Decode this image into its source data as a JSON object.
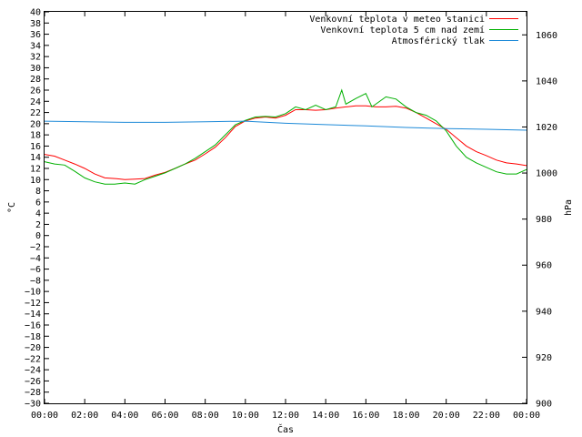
{
  "chart_data": {
    "type": "line",
    "xlabel": "Čas",
    "ylabel": "°C",
    "y2label": "hPa",
    "x_ticks": [
      "00:00",
      "02:00",
      "04:00",
      "06:00",
      "08:00",
      "10:00",
      "12:00",
      "14:00",
      "16:00",
      "18:00",
      "20:00",
      "22:00",
      "00:00"
    ],
    "xlim_hours": [
      0,
      24
    ],
    "ylim": [
      -30,
      40
    ],
    "y_ticks": [
      40,
      38,
      36,
      34,
      32,
      30,
      28,
      26,
      24,
      22,
      20,
      18,
      16,
      14,
      12,
      10,
      8,
      6,
      4,
      2,
      0,
      -2,
      -4,
      -6,
      -8,
      -10,
      -12,
      -14,
      -16,
      -18,
      -20,
      -22,
      -24,
      -26,
      -28,
      -30
    ],
    "y2lim": [
      900,
      1070
    ],
    "y2_ticks": [
      1060,
      1040,
      1020,
      1000,
      980,
      960,
      940,
      920,
      900
    ],
    "legend_position": "top-right",
    "grid": false,
    "series": [
      {
        "name": "Venkovní teplota v meteo stanici",
        "color": "#ff0000",
        "axis": "left",
        "points": [
          [
            0,
            14.5
          ],
          [
            0.5,
            14.2
          ],
          [
            1,
            13.5
          ],
          [
            1.5,
            12.8
          ],
          [
            2,
            12
          ],
          [
            2.5,
            11
          ],
          [
            3,
            10.3
          ],
          [
            3.5,
            10.2
          ],
          [
            4,
            10
          ],
          [
            4.5,
            10.1
          ],
          [
            5,
            10.2
          ],
          [
            5.5,
            10.8
          ],
          [
            6,
            11.3
          ],
          [
            6.5,
            12
          ],
          [
            7,
            12.8
          ],
          [
            7.5,
            13.5
          ],
          [
            8,
            14.6
          ],
          [
            8.5,
            15.8
          ],
          [
            9,
            17.5
          ],
          [
            9.5,
            19.5
          ],
          [
            10,
            20.5
          ],
          [
            10.5,
            21
          ],
          [
            11,
            21.2
          ],
          [
            11.5,
            21
          ],
          [
            12,
            21.5
          ],
          [
            12.5,
            22.5
          ],
          [
            13,
            22.5
          ],
          [
            13.5,
            22.4
          ],
          [
            14,
            22.5
          ],
          [
            14.5,
            22.8
          ],
          [
            15,
            23
          ],
          [
            15.5,
            23.2
          ],
          [
            16,
            23.2
          ],
          [
            16.5,
            23
          ],
          [
            17,
            23
          ],
          [
            17.5,
            23.1
          ],
          [
            18,
            22.8
          ],
          [
            18.5,
            22
          ],
          [
            19,
            21
          ],
          [
            19.5,
            20
          ],
          [
            20,
            19
          ],
          [
            20.5,
            17.5
          ],
          [
            21,
            16
          ],
          [
            21.5,
            15
          ],
          [
            22,
            14.3
          ],
          [
            22.5,
            13.5
          ],
          [
            23,
            13
          ],
          [
            23.5,
            12.8
          ],
          [
            24,
            12.5
          ]
        ]
      },
      {
        "name": "Venkovní teplota 5 cm nad zemí",
        "color": "#00b000",
        "axis": "left",
        "points": [
          [
            0,
            13.2
          ],
          [
            0.5,
            12.8
          ],
          [
            1,
            12.6
          ],
          [
            1.5,
            11.5
          ],
          [
            2,
            10.3
          ],
          [
            2.5,
            9.6
          ],
          [
            3,
            9.2
          ],
          [
            3.5,
            9.2
          ],
          [
            4,
            9.4
          ],
          [
            4.5,
            9.2
          ],
          [
            5,
            10
          ],
          [
            5.5,
            10.6
          ],
          [
            6,
            11.2
          ],
          [
            6.5,
            12
          ],
          [
            7,
            12.8
          ],
          [
            7.5,
            13.8
          ],
          [
            8,
            15
          ],
          [
            8.5,
            16.2
          ],
          [
            9,
            18
          ],
          [
            9.5,
            19.8
          ],
          [
            10,
            20.6
          ],
          [
            10.5,
            21.2
          ],
          [
            11,
            21.3
          ],
          [
            11.5,
            21.2
          ],
          [
            12,
            21.8
          ],
          [
            12.5,
            23
          ],
          [
            13,
            22.5
          ],
          [
            13.5,
            23.3
          ],
          [
            14,
            22.5
          ],
          [
            14.5,
            23
          ],
          [
            14.8,
            26
          ],
          [
            15,
            23.5
          ],
          [
            15.5,
            24.5
          ],
          [
            16,
            25.4
          ],
          [
            16.3,
            23
          ],
          [
            17,
            24.8
          ],
          [
            17.5,
            24.4
          ],
          [
            18,
            23
          ],
          [
            18.5,
            22
          ],
          [
            19,
            21.5
          ],
          [
            19.5,
            20.5
          ],
          [
            20,
            18.7
          ],
          [
            20.5,
            16
          ],
          [
            21,
            14
          ],
          [
            21.5,
            13
          ],
          [
            22,
            12.2
          ],
          [
            22.5,
            11.4
          ],
          [
            23,
            11
          ],
          [
            23.5,
            11
          ],
          [
            24,
            11.8
          ]
        ]
      },
      {
        "name": "Atmosférický tlak",
        "color": "#1e8ad8",
        "axis": "right",
        "points": [
          [
            0,
            1022.5
          ],
          [
            2,
            1022.3
          ],
          [
            4,
            1022
          ],
          [
            6,
            1022
          ],
          [
            8,
            1022.3
          ],
          [
            10,
            1022.5
          ],
          [
            12,
            1021.6
          ],
          [
            14,
            1021
          ],
          [
            16,
            1020.5
          ],
          [
            18,
            1019.8
          ],
          [
            20,
            1019.3
          ],
          [
            22,
            1019
          ],
          [
            24,
            1018.6
          ]
        ]
      }
    ]
  }
}
